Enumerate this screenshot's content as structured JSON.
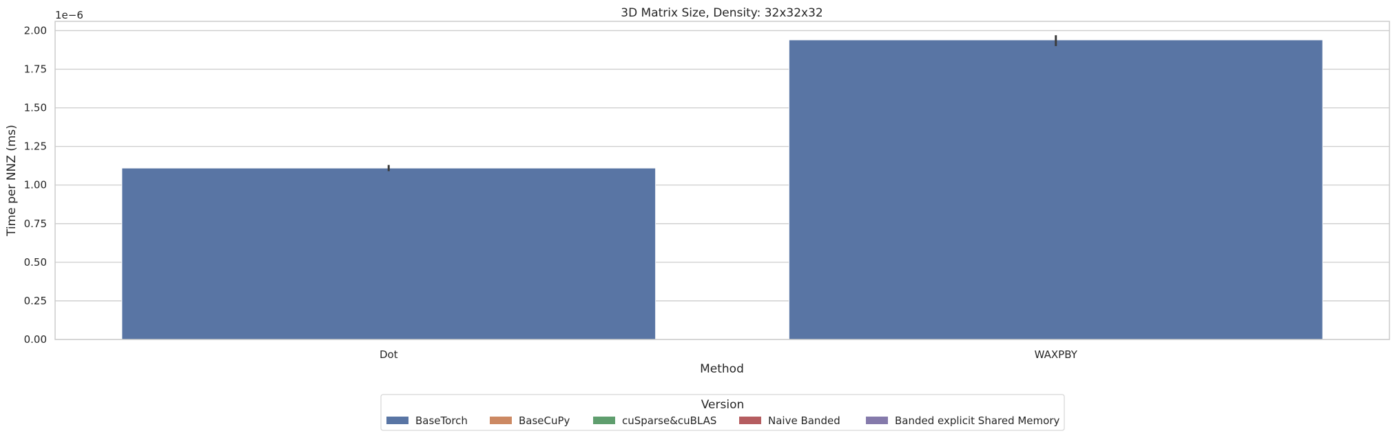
{
  "chart_data": {
    "type": "bar",
    "title": "3D Matrix Size, Density: 32x32x32",
    "xlabel": "Method",
    "ylabel": "Time per NNZ (ms)",
    "y_offset_label": "1e−6",
    "categories": [
      "Dot",
      "WAXPBY"
    ],
    "ylim": [
      0,
      2.06
    ],
    "yticks": [
      0.0,
      0.25,
      0.5,
      0.75,
      1.0,
      1.25,
      1.5,
      1.75,
      2.0
    ],
    "ytick_labels": [
      "0.00",
      "0.25",
      "0.50",
      "0.75",
      "1.00",
      "1.25",
      "1.50",
      "1.75",
      "2.00"
    ],
    "grid": true,
    "legend_placement": "bottom-center",
    "legend_title": "Version",
    "series": [
      {
        "name": "BaseTorch",
        "color": "#5975a4",
        "values": [
          1.11,
          1.94
        ],
        "error": [
          [
            1.09,
            1.13
          ],
          [
            1.9,
            1.97
          ]
        ]
      },
      {
        "name": "BaseCuPy",
        "color": "#cc8963",
        "values": [
          null,
          null
        ]
      },
      {
        "name": "cuSparse&cuBLAS",
        "color": "#5f9e6e",
        "values": [
          null,
          null
        ]
      },
      {
        "name": "Naive Banded",
        "color": "#b55d60",
        "values": [
          null,
          null
        ]
      },
      {
        "name": "Banded explicit Shared Memory",
        "color": "#857aab",
        "values": [
          null,
          null
        ]
      }
    ]
  }
}
